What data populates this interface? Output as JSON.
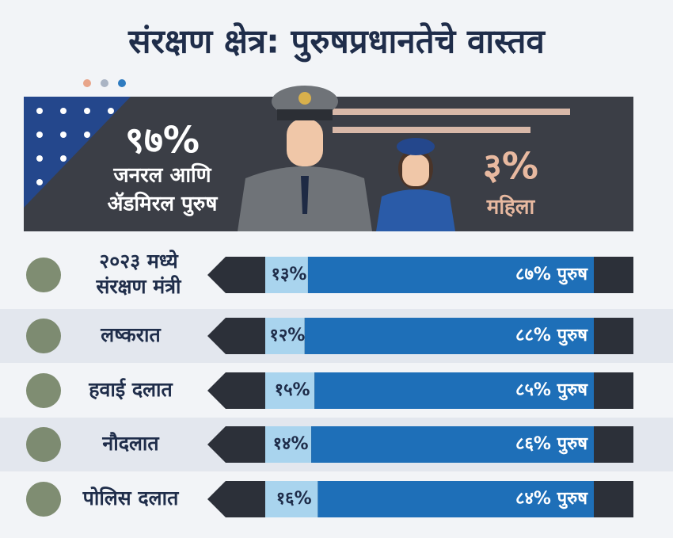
{
  "title": "संरक्षण क्षेत्र: पुरुषप्रधानतेचे वास्तव",
  "hero": {
    "men": {
      "value": 97,
      "value_label": "९७%",
      "text": [
        "जनरल आणि",
        "ॲडमिरल पुरुष"
      ]
    },
    "women": {
      "value": 3,
      "value_label": "३%",
      "text": [
        "महिला"
      ]
    }
  },
  "rows": [
    {
      "label": [
        "२०२३ मध्ये",
        "संरक्षण मंत्री"
      ],
      "values": [
        13,
        87
      ],
      "value_labels": [
        "१३%",
        "८७% पुरुष"
      ]
    },
    {
      "label": [
        "लष्करात"
      ],
      "values": [
        12,
        88
      ],
      "value_labels": [
        "१२%",
        "८८% पुरुष"
      ]
    },
    {
      "label": [
        "हवाई दलात"
      ],
      "values": [
        15,
        85
      ],
      "value_labels": [
        "१५%",
        "८५% पुरुष"
      ]
    },
    {
      "label": [
        "नौदलात"
      ],
      "values": [
        14,
        86
      ],
      "value_labels": [
        "१४%",
        "८६% पुरुष"
      ]
    },
    {
      "label": [
        "पोलिस दलात"
      ],
      "values": [
        16,
        84
      ],
      "value_labels": [
        "१६%",
        "८४% पुरुष"
      ]
    }
  ]
}
